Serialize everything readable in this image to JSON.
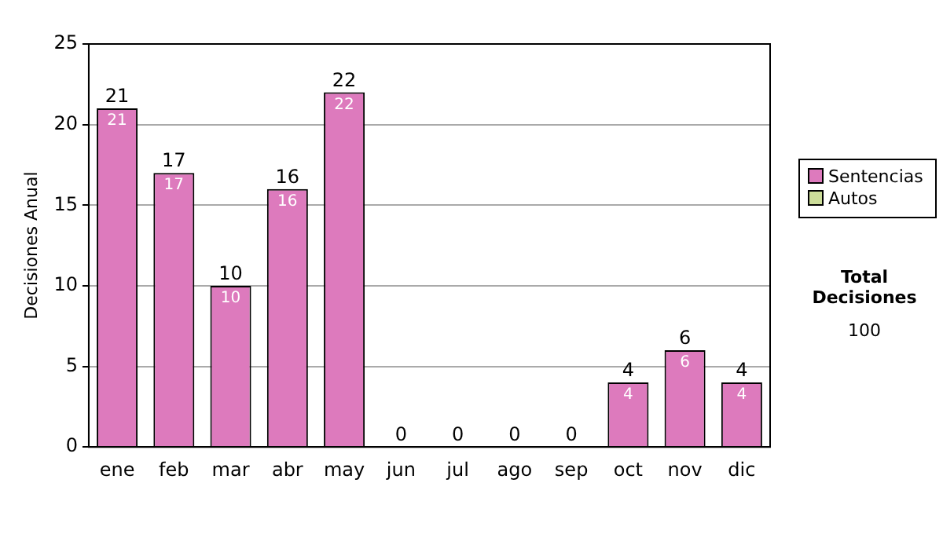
{
  "chart_data": {
    "type": "bar",
    "ylabel": "Decisiones Anual",
    "categories": [
      "ene",
      "feb",
      "mar",
      "abr",
      "may",
      "jun",
      "jul",
      "ago",
      "sep",
      "oct",
      "nov",
      "dic"
    ],
    "series": [
      {
        "name": "Sentencias",
        "color": "#dd7abd",
        "values": [
          21,
          17,
          10,
          16,
          22,
          0,
          0,
          0,
          0,
          4,
          6,
          4
        ],
        "value_labels": [
          "21",
          "17",
          "10",
          "16",
          "22",
          null,
          null,
          null,
          null,
          "4",
          "6",
          "4"
        ]
      },
      {
        "name": "Autos",
        "color": "#ccdd99",
        "values": [
          0,
          0,
          0,
          0,
          0,
          0,
          0,
          0,
          0,
          0,
          0,
          0
        ]
      }
    ],
    "stacked": true,
    "totals": [
      "21",
      "17",
      "10",
      "16",
      "22",
      "0",
      "0",
      "0",
      "0",
      "4",
      "6",
      "4"
    ],
    "ylim": [
      0,
      25
    ],
    "yticks": [
      0,
      5,
      10,
      15,
      20,
      25
    ],
    "grid": "y",
    "legend": "right",
    "annotations": [
      "Total Decisiones",
      "100"
    ]
  }
}
